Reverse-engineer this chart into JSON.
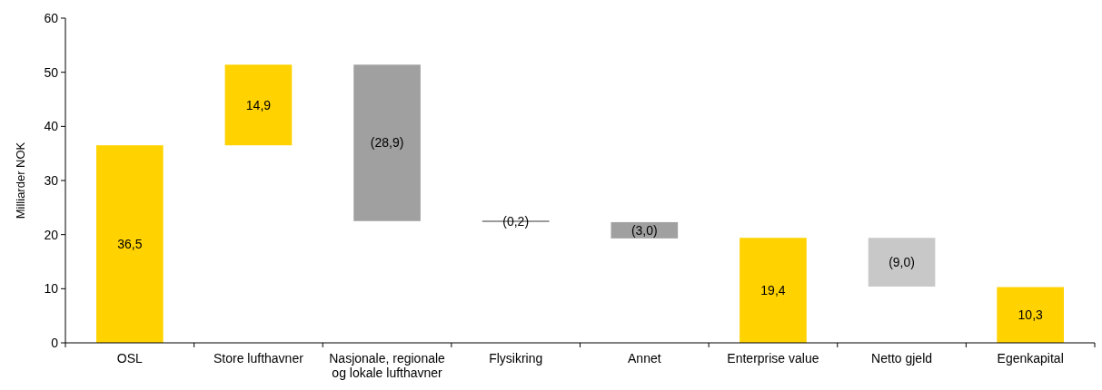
{
  "chart_data": {
    "type": "bar",
    "ylabel": "Milliarder NOK",
    "categories": [
      "OSL",
      "Store lufthavner",
      "Nasjonale, regionale og lokale lufthavner",
      "Flysikring",
      "Annet",
      "Enterprise value",
      "Netto gjeld",
      "Egenkapital"
    ],
    "values": [
      36.5,
      14.9,
      -28.9,
      -0.2,
      -3.0,
      19.4,
      -9.0,
      10.3
    ],
    "base": [
      0,
      36.5,
      51.4,
      22.5,
      22.3,
      0,
      19.4,
      0
    ],
    "colors": [
      "#ffd200",
      "#ffd200",
      "#a0a0a0",
      "#a0a0a0",
      "#a0a0a0",
      "#ffd200",
      "#c8c8c8",
      "#ffd200"
    ],
    "value_labels": [
      "36,5",
      "14,9",
      "(28,9)",
      "(0,2)",
      "(3,0)",
      "19,4",
      "(9,0)",
      "10,3"
    ],
    "ylim": [
      0,
      60
    ],
    "yticks": [
      0,
      10,
      20,
      30,
      40,
      50,
      60
    ],
    "grid": false
  }
}
